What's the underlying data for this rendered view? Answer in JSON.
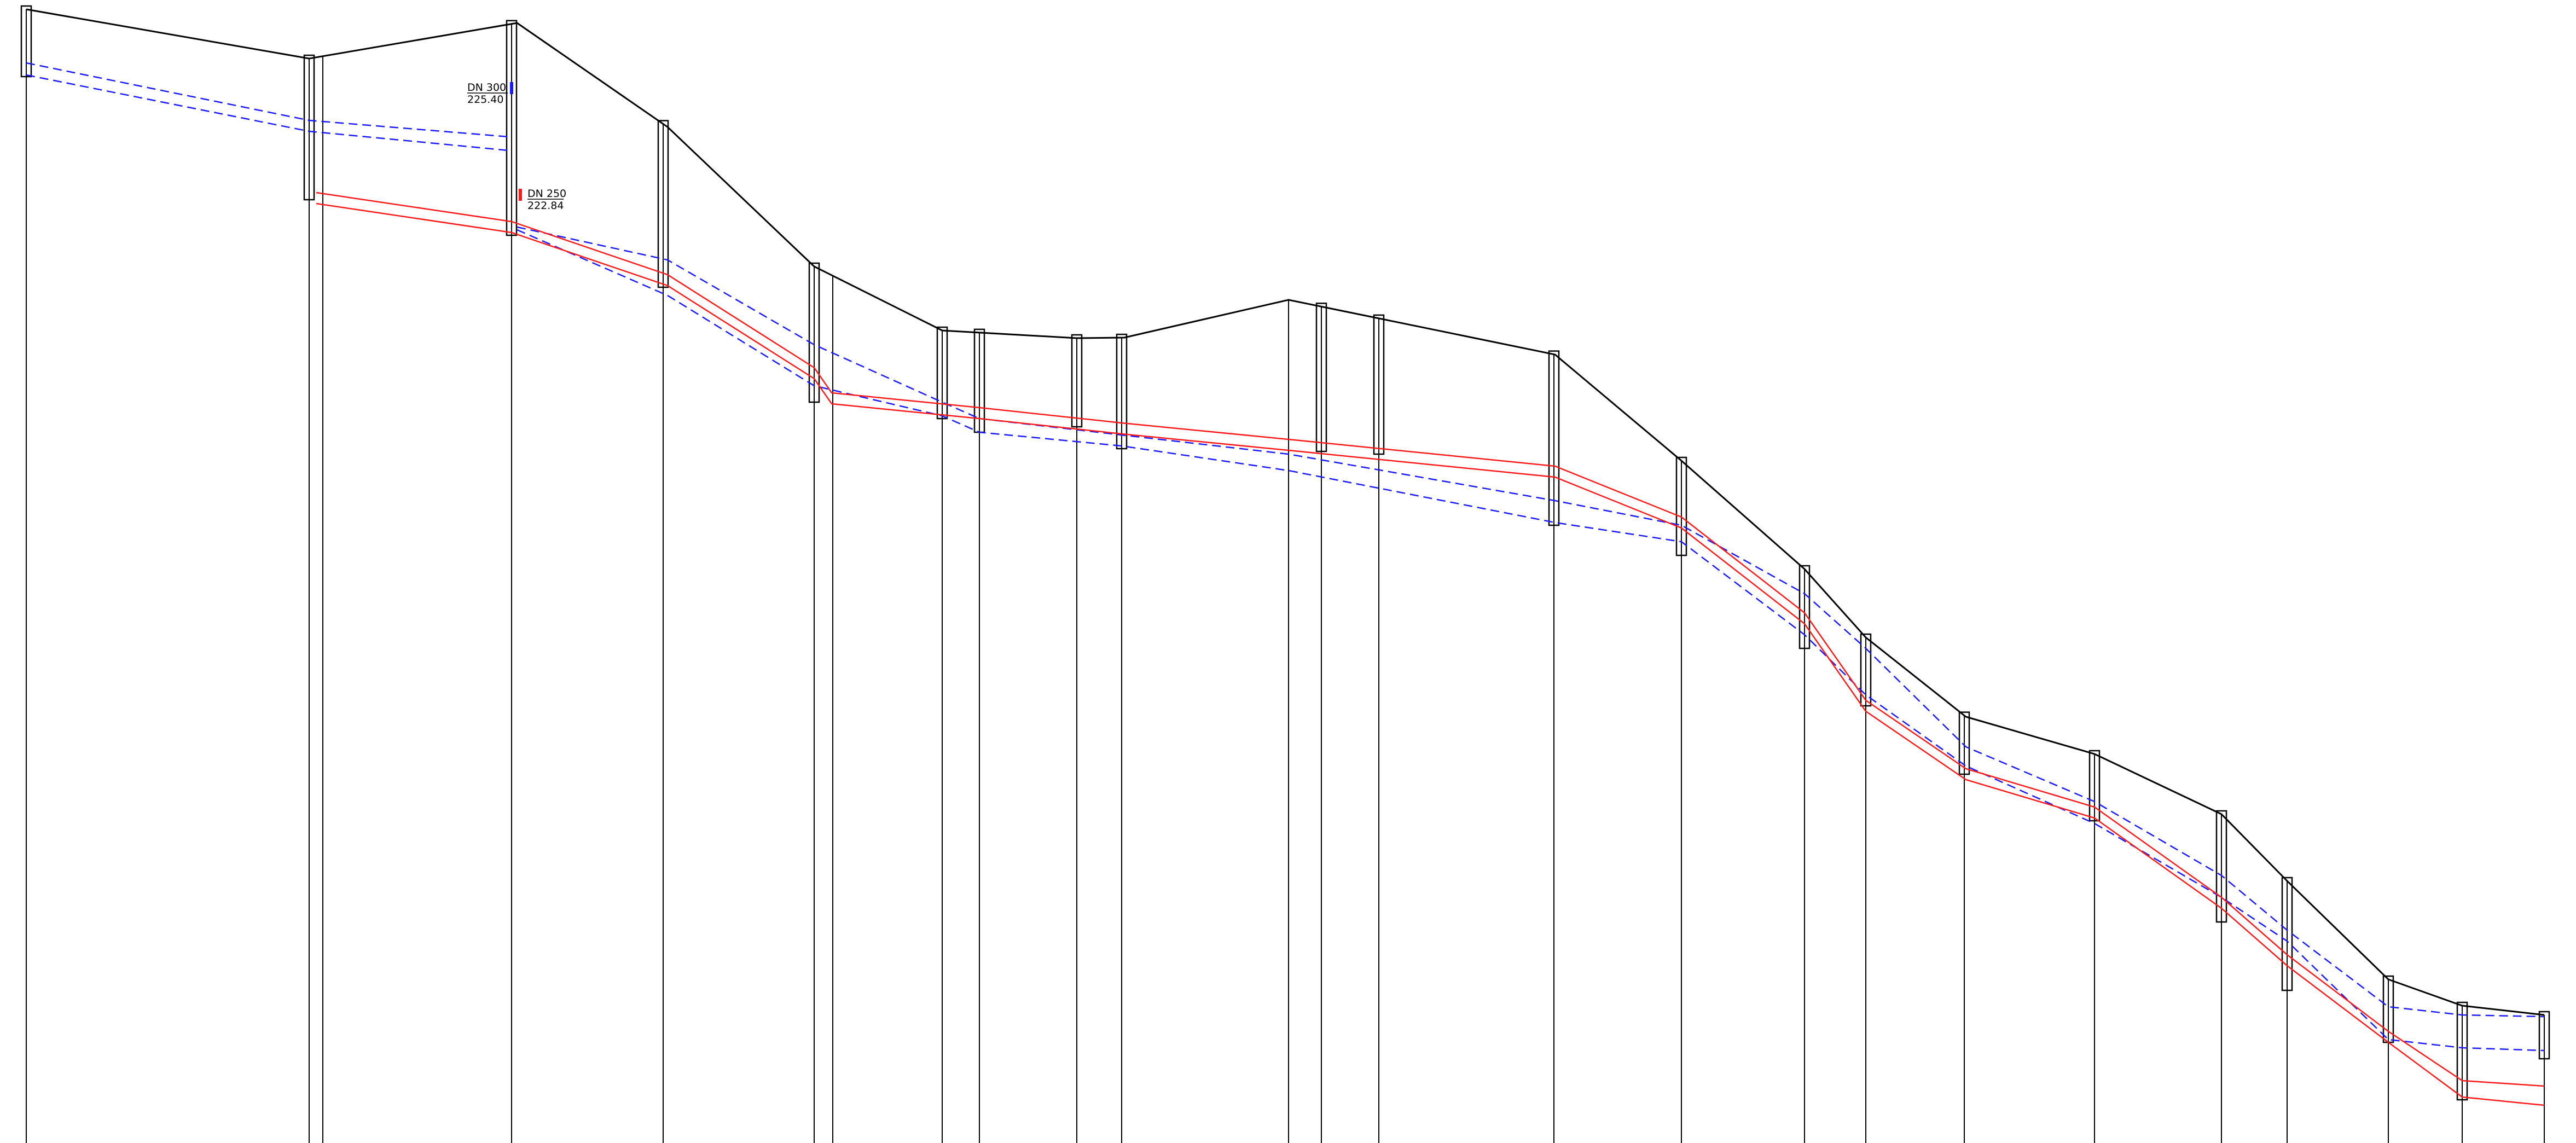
{
  "colors": {
    "background": "#ffffff",
    "ground": "#000000",
    "manholes": "#000000",
    "stations": "#000000",
    "pipe_dn300": "#1a1aff",
    "pipe_dn250": "#ff1a1a"
  },
  "labels": {
    "dn300": {
      "text": "DN 300",
      "value": "225.40"
    },
    "dn250": {
      "text": "DN 250",
      "value": "222.84"
    }
  }
}
